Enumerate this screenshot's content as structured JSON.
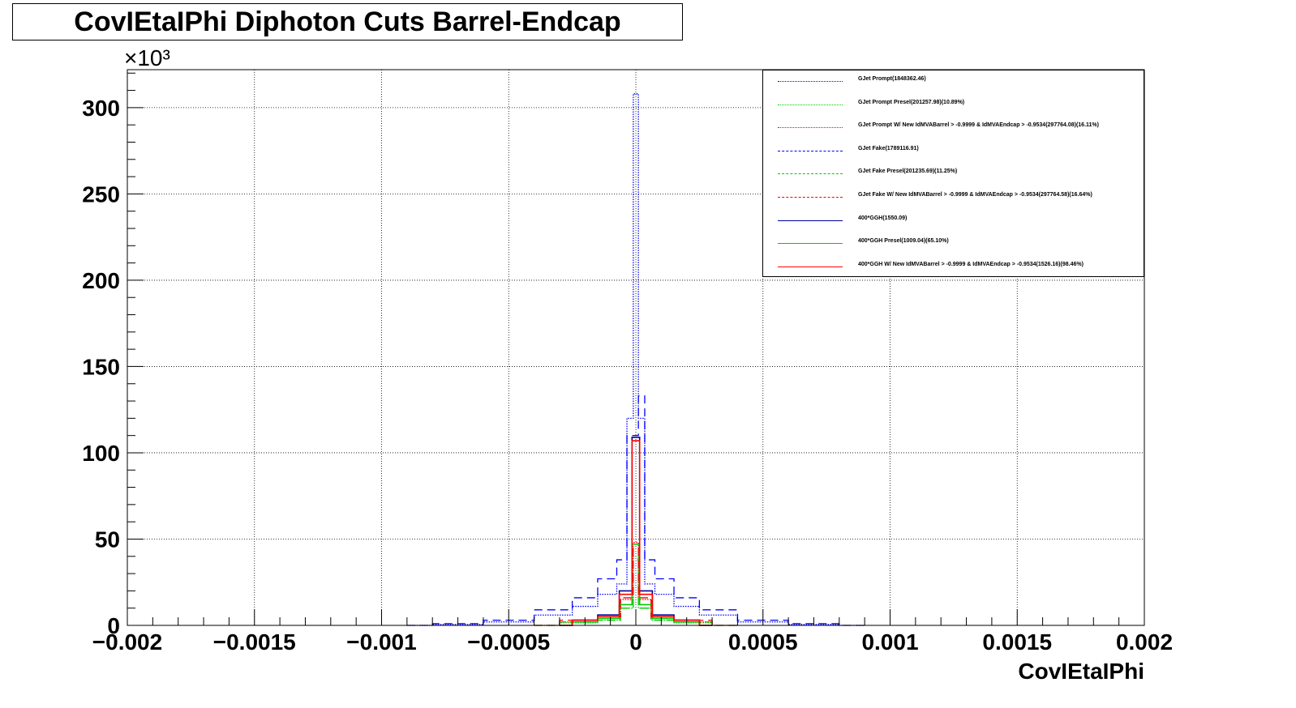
{
  "title": "CovIEtaIPhi Diphoton Cuts Barrel-Endcap",
  "chart_data": {
    "type": "line",
    "title": "CovIEtaIPhi Diphoton Cuts Barrel-Endcap",
    "xlabel": "CovIEtaIPhi",
    "ylabel": "",
    "y_multiplier_label": "×10³",
    "xlim": [
      -0.002,
      0.002
    ],
    "ylim": [
      0,
      322
    ],
    "x_ticks": [
      -0.002,
      -0.0015,
      -0.001,
      -0.0005,
      0,
      0.0005,
      0.001,
      0.0015,
      0.002
    ],
    "x_tick_labels": [
      "−0.002",
      "−0.0015",
      "−0.001",
      "−0.0005",
      "0",
      "0.0005",
      "0.001",
      "0.0015",
      "0.002"
    ],
    "y_ticks": [
      0,
      50,
      100,
      150,
      200,
      250,
      300
    ],
    "y_tick_labels": [
      "0",
      "50",
      "100",
      "150",
      "200",
      "250",
      "300"
    ],
    "grid": true,
    "legend_position": "top-right",
    "series": [
      {
        "name": "GJet Prompt(1848362.46)",
        "color": "#0000ff",
        "style": "dotted",
        "x": [
          -0.0009,
          -0.0007,
          -0.0005,
          -0.0003,
          -0.0002,
          -0.0001,
          -5e-05,
          -2e-05,
          0,
          2e-05,
          5e-05,
          0.0001,
          0.0002,
          0.0003,
          0.0005,
          0.0007,
          0.0009
        ],
        "y": [
          0,
          0.5,
          2,
          6,
          11,
          18,
          24,
          120,
          308,
          120,
          24,
          18,
          11,
          6,
          2,
          0.5,
          0
        ]
      },
      {
        "name": "GJet Prompt Presel(201257.98)(10.89%)",
        "color": "#00cc00",
        "style": "dotted",
        "x": [
          -0.0004,
          -0.0002,
          -0.0001,
          -2e-05,
          0,
          2e-05,
          0.0001,
          0.0002,
          0.0004
        ],
        "y": [
          0,
          1.5,
          3,
          10,
          40,
          10,
          3,
          1.5,
          0
        ]
      },
      {
        "name": "GJet Prompt W/ New IdMVABarrel > -0.9999 & IdMVAEndcap > -0.9534(297764.08)(16.11%)",
        "color": "#ff0000",
        "style": "dotted",
        "x": [
          -0.0004,
          -0.0002,
          -0.0001,
          -2e-05,
          0,
          2e-05,
          0.0001,
          0.0002,
          0.0004
        ],
        "y": [
          0,
          2,
          4,
          15,
          48,
          15,
          4,
          2,
          0
        ]
      },
      {
        "name": "GJet Fake(1789116.91)",
        "color": "#0000ff",
        "style": "dashed",
        "x": [
          -0.0009,
          -0.0007,
          -0.0005,
          -0.0003,
          -0.0002,
          -0.0001,
          -5e-05,
          -2e-05,
          0,
          2e-05,
          5e-05,
          0.0001,
          0.0002,
          0.0003,
          0.0005,
          0.0007,
          0.0009
        ],
        "y": [
          0,
          1,
          3,
          9,
          16,
          27,
          38,
          110,
          110,
          133,
          38,
          27,
          16,
          9,
          3,
          1,
          0
        ]
      },
      {
        "name": "GJet Fake Presel(201235.69)(11.25%)",
        "color": "#00cc00",
        "style": "dashed",
        "x": [
          -0.0004,
          -0.0002,
          -0.0001,
          -2e-05,
          0,
          2e-05,
          0.0001,
          0.0002,
          0.0004
        ],
        "y": [
          0,
          2,
          3,
          10,
          38,
          10,
          3,
          2,
          0
        ]
      },
      {
        "name": "GJet Fake W/ New IdMVABarrel > -0.9999 & IdMVAEndcap > -0.9534(297764.58)(16.64%)",
        "color": "#ff0000",
        "style": "dashed",
        "x": [
          -0.0004,
          -0.0002,
          -0.0001,
          -2e-05,
          0,
          2e-05,
          0.0001,
          0.0002,
          0.0004
        ],
        "y": [
          0,
          3,
          5,
          16,
          45,
          16,
          5,
          3,
          0
        ]
      },
      {
        "name": "400*GGH(1550.09)",
        "color": "#000099",
        "style": "solid",
        "x": [
          -0.0003,
          -0.0002,
          -0.0001,
          -3e-05,
          0,
          3e-05,
          0.0001,
          0.0002,
          0.0003
        ],
        "y": [
          0,
          3,
          6,
          20,
          109,
          20,
          6,
          3,
          0
        ]
      },
      {
        "name": "400*GGH Presel(1009.04)(65.10%)",
        "color": "#00cc00",
        "style": "solid",
        "x": [
          -0.0003,
          -0.0002,
          -0.0001,
          -3e-05,
          0,
          3e-05,
          0.0001,
          0.0002,
          0.0003
        ],
        "y": [
          0,
          2,
          4,
          12,
          47,
          12,
          4,
          2,
          0
        ]
      },
      {
        "name": "400*GGH W/ New IdMVABarrel > -0.9999 & IdMVAEndcap > -0.9534(1526.16)(98.46%)",
        "color": "#ff0000",
        "style": "solid",
        "x": [
          -0.0003,
          -0.0002,
          -0.0001,
          -3e-05,
          0,
          3e-05,
          0.0001,
          0.0002,
          0.0003
        ],
        "y": [
          0,
          3,
          5,
          18,
          107,
          18,
          5,
          3,
          0
        ]
      }
    ]
  }
}
